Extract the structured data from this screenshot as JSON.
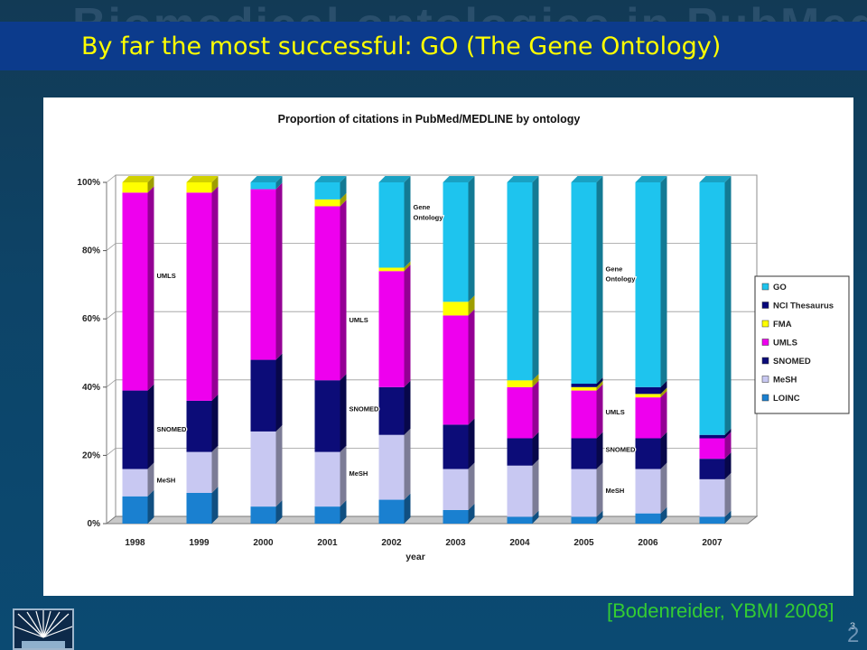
{
  "slide": {
    "ghost_title": "Biomedical ontologies in PubMed",
    "title": "By far the most successful: GO (The Gene Ontology)",
    "citation": "[Bodenreider, YBMI 2008]",
    "page_number": "3",
    "page_number_big": "2"
  },
  "colors": {
    "GO": "#1ec4ee",
    "NCI Thesaurus": "#07077a",
    "FMA": "#ffff00",
    "UMLS": "#ee00ee",
    "SNOMED": "#0c0c78",
    "MeSH": "#c8c8f2",
    "LOINC": "#1a80d0"
  },
  "chart_data": {
    "type": "bar",
    "stacked": true,
    "title": "Proportion of citations in PubMed/MEDLINE by ontology",
    "xlabel": "year",
    "ylabel": "",
    "ylim": [
      0,
      100
    ],
    "yticks": [
      "0%",
      "20%",
      "40%",
      "60%",
      "80%",
      "100%"
    ],
    "categories": [
      "1998",
      "1999",
      "2000",
      "2001",
      "2002",
      "2003",
      "2004",
      "2005",
      "2006",
      "2007"
    ],
    "legend_position": "right",
    "legend": [
      "GO",
      "NCI Thesaurus",
      "FMA",
      "UMLS",
      "SNOMED",
      "MeSH",
      "LOINC"
    ],
    "series": [
      {
        "name": "LOINC",
        "values": [
          8,
          9,
          5,
          5,
          7,
          4,
          2,
          2,
          3,
          2
        ]
      },
      {
        "name": "MeSH",
        "values": [
          8,
          12,
          22,
          16,
          19,
          12,
          15,
          14,
          13,
          11
        ]
      },
      {
        "name": "SNOMED",
        "values": [
          23,
          15,
          21,
          21,
          14,
          13,
          8,
          9,
          9,
          6
        ]
      },
      {
        "name": "UMLS",
        "values": [
          58,
          61,
          50,
          51,
          34,
          32,
          15,
          14,
          12,
          6
        ]
      },
      {
        "name": "FMA",
        "values": [
          3,
          3,
          0,
          2,
          1,
          4,
          2,
          1,
          1,
          0
        ]
      },
      {
        "name": "NCI Thesaurus",
        "values": [
          0,
          0,
          0,
          0,
          0,
          0,
          0,
          1,
          2,
          1
        ]
      },
      {
        "name": "GO",
        "values": [
          0,
          0,
          2,
          5,
          25,
          35,
          58,
          59,
          60,
          74
        ]
      }
    ],
    "annotations": [
      {
        "text": "UMLS",
        "category": "1998",
        "value": 72
      },
      {
        "text": "SNOMED",
        "category": "1998",
        "value": 27
      },
      {
        "text": "MeSH",
        "category": "1998",
        "value": 12
      },
      {
        "text": "UMLS",
        "category": "2001",
        "value": 59
      },
      {
        "text": "SNOMED",
        "category": "2001",
        "value": 33
      },
      {
        "text": "MeSH",
        "category": "2001",
        "value": 14
      },
      {
        "text": "Gene",
        "category": "2002",
        "value": 92
      },
      {
        "text": "Ontology",
        "category": "2002",
        "value": 89
      },
      {
        "text": "Gene",
        "category": "2005",
        "value": 74
      },
      {
        "text": "Ontology",
        "category": "2005",
        "value": 71
      },
      {
        "text": "UMLS",
        "category": "2005",
        "value": 32
      },
      {
        "text": "SNOMED",
        "category": "2005",
        "value": 21
      },
      {
        "text": "MeSH",
        "category": "2005",
        "value": 9
      }
    ]
  }
}
